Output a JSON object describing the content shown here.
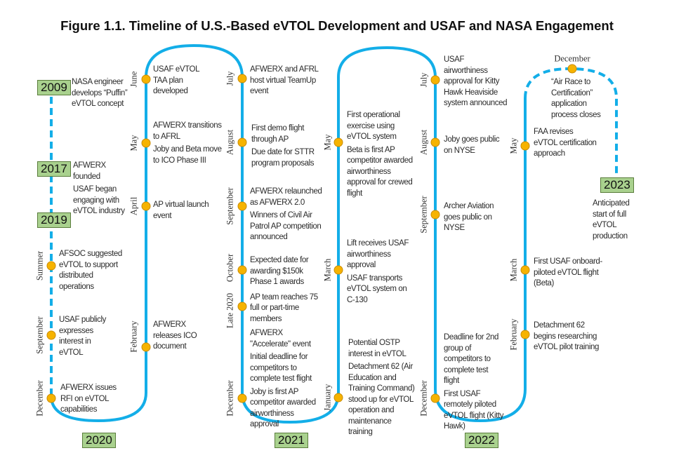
{
  "title": "Figure 1.1. Timeline of U.S.-Based eVTOL Development and USAF and NASA Engagement",
  "colors": {
    "line": "#13aee8",
    "dot": "#f6b300",
    "dot_border": "#c98b00",
    "year_box": "#a9d18e"
  },
  "years": {
    "y2009": "2009",
    "y2017": "2017",
    "y2019": "2019",
    "y2020": "2020",
    "y2021": "2021",
    "y2022": "2022",
    "y2023": "2023"
  },
  "months": {
    "summer": "Summer",
    "sep19": "September",
    "dec19": "December",
    "jun20": "June",
    "may20": "May",
    "apr20": "April",
    "feb20": "February",
    "jul20": "July",
    "aug20": "August",
    "sep20": "September",
    "oct20": "October",
    "late20": "Late 2020",
    "dec20": "December",
    "may21": "May",
    "mar21": "March",
    "jan21": "January",
    "jul21": "July",
    "aug21": "August",
    "sep21": "September",
    "dec21": "December",
    "dec22": "December",
    "may22": "May",
    "mar22": "March",
    "feb22": "February"
  },
  "events": {
    "e2009": "NASA engineer develops “Puffin” eVTOL concept",
    "e2017a": "AFWERX founded",
    "e2017b": "USAF began engaging with eVTOL industry",
    "summer19": "AFSOC suggested eVTOL to support distributed operations",
    "sep19": "USAF publicly expresses interest in eVTOL",
    "dec19": "AFWERX issues RFI on eVTOL capabilities",
    "jun20": "USAF eVTOL TAA plan developed",
    "may20a": "AFWERX transitions to AFRL",
    "may20b": "Joby and Beta move to ICO Phase III",
    "apr20": "AP virtual launch event",
    "feb20": "AFWERX releases ICO document",
    "jul20": "AFWERX and AFRL host virtual TeamUp event",
    "aug20a": "First demo flight through AP",
    "aug20b": "Due date for STTR program proposals",
    "sep20a": "AFWERX relaunched as AFWERX 2.0",
    "sep20b": "Winners of Civil Air Patrol AP competition announced",
    "oct20": "Expected date for awarding $150k Phase 1 awards",
    "late20": "AP team reaches 75 full or part-time members",
    "dec20a": "AFWERX \"Accelerate\" event",
    "dec20b": "Initial deadline for competitors to complete test flight",
    "dec20c": "Joby is first AP competitor awarded airworthiness approval",
    "may21a": "First operational exercise using eVTOL system",
    "may21b": "Beta is first AP competitor awarded airworthiness approval for crewed flight",
    "mar21a": "Lift receives USAF airworthiness approval",
    "mar21b": "USAF transports eVTOL system on C-130",
    "jan21a": "Potential OSTP interest in eVTOL",
    "jan21b": "Detachment 62 (Air Education and Training Command) stood up for eVTOL operation and maintenance training",
    "jul21": "USAF airworthiness approval for Kitty Hawk Heaviside system announced",
    "aug21": "Joby goes public on NYSE",
    "sep21": "Archer Aviation goes public on NYSE",
    "dec21a": "Deadline for 2nd group of competitors to complete test flight",
    "dec21b": "First USAF remotely piloted eVTOL flight (Kitty Hawk)",
    "dec22": "“Air Race to Certification” application process closes",
    "may22": "FAA revises eVTOL certification approach",
    "mar22": "First USAF onboard-piloted eVTOL flight (Beta)",
    "feb22": "Detachment 62 begins researching eVTOL pilot training",
    "e2023": "Anticipated start of full eVTOL production"
  }
}
